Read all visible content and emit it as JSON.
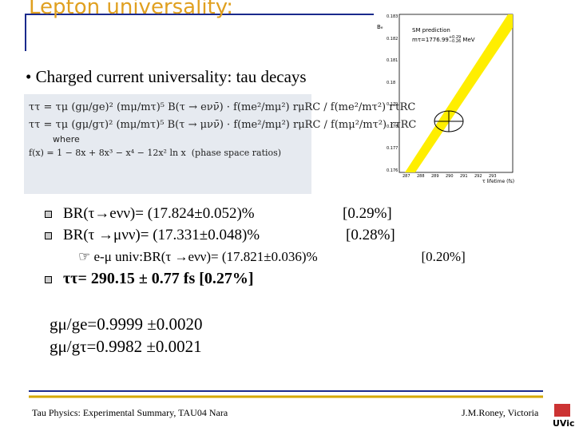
{
  "header": {
    "title": "Lepton universality:"
  },
  "bullet": "Charged current universality: tau decays",
  "formula": {
    "line1": "ττ = τμ (gμ/ge)² (mμ/mτ)⁵ B(τ → eνν̄) · f(me²/mμ²) rμRC / f(me²/mτ²) rτRC",
    "line2": "ττ = τμ (gμ/gτ)² (mμ/mτ)⁵ B(τ → μνν̄) · f(me²/mμ²) rμRC / f(mμ²/mτ²) rτRC",
    "where": "where",
    "fdef": "f(x) = 1 − 8x + 8x³ − x⁴ − 12x² ln x",
    "fnote": "(phase space ratios)"
  },
  "plot": {
    "ylabel": "Bₑ",
    "legend_title": "SM prediction",
    "legend_mass": "mτ=1776.99",
    "mass_up": "+0.29",
    "mass_down": "−0.26",
    "mass_unit": "MeV",
    "xlabel": "τ lifetime (fs)",
    "yticks": [
      "0.183",
      "0.182",
      "0.181",
      "0.18",
      "0.179",
      "0.178",
      "0.177",
      "0.176"
    ],
    "xticks": [
      "287",
      "288",
      "289",
      "290",
      "291",
      "292",
      "293"
    ]
  },
  "list": [
    {
      "text": "BR(τ→eνν)= (17.824±0.052)%",
      "note": "[0.29%]"
    },
    {
      "text": "BR(τ →μνν)= (17.331±0.048)%",
      "note": "[0.28%]"
    }
  ],
  "sub": {
    "text": "e-μ univ:BR(τ →eνν)= (17.821±0.036)%",
    "note": "[0.20%]"
  },
  "lifetime": "ττ= 290.15 ± 0.77 fs  [0.27%]",
  "ratios": [
    "gμ/ge=0.9999 ±0.0020",
    "gμ/gτ=0.9982 ±0.0021"
  ],
  "footer": {
    "left": "Tau Physics: Experimental Summary, TAU04 Nara",
    "right": "J.M.Roney, Victoria",
    "logo": "UVic"
  }
}
